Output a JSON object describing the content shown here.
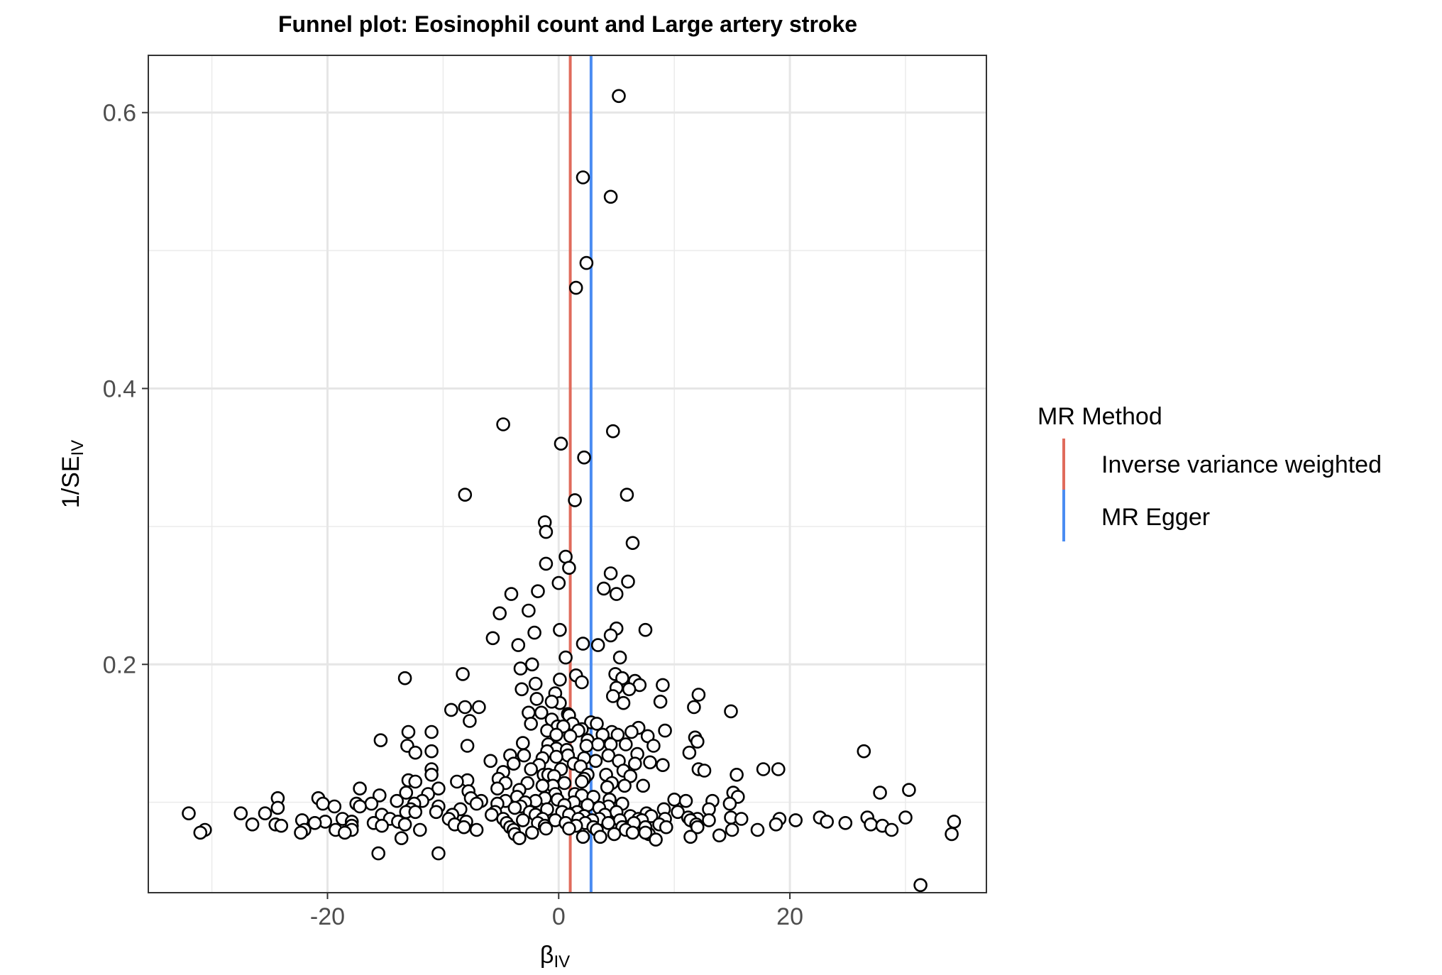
{
  "chart_data": {
    "type": "scatter",
    "title": "Funnel plot: Eosinophil count and Large artery stroke",
    "xlabel": {
      "main": "β",
      "sub": "IV"
    },
    "ylabel": {
      "main": "1/SE",
      "sub": "IV"
    },
    "xlim": [
      -35.5,
      37
    ],
    "ylim": [
      0.0345,
      0.6415
    ],
    "x_ticks": [
      -20,
      0,
      20
    ],
    "x_tick_labels": [
      "-20",
      "0",
      "20"
    ],
    "y_ticks": [
      0.2,
      0.4,
      0.6
    ],
    "y_tick_labels": [
      "0.2",
      "0.4",
      "0.6"
    ],
    "x_minor_ticks": [
      -30,
      -10,
      10,
      30
    ],
    "y_minor_ticks": [
      0.1,
      0.3,
      0.5
    ],
    "grid": true,
    "theme": "bw",
    "legend": {
      "title": "MR Method",
      "position": "right",
      "entries": [
        {
          "label": "Inverse variance weighted",
          "color": "#e06b5c"
        },
        {
          "label": "MR Egger",
          "color": "#4a8cf2"
        }
      ]
    },
    "lines": [
      {
        "name": "Inverse variance weighted",
        "orientation": "vertical",
        "x": 1.0,
        "color": "#e06b5c"
      },
      {
        "name": "MR Egger",
        "orientation": "vertical",
        "x": 2.8,
        "color": "#4a8cf2"
      }
    ],
    "points": [
      [
        5.2,
        0.612
      ],
      [
        2.1,
        0.553
      ],
      [
        4.5,
        0.539
      ],
      [
        2.4,
        0.491
      ],
      [
        1.5,
        0.473
      ],
      [
        -4.8,
        0.374
      ],
      [
        4.7,
        0.369
      ],
      [
        0.2,
        0.36
      ],
      [
        2.2,
        0.35
      ],
      [
        -8.1,
        0.323
      ],
      [
        1.4,
        0.319
      ],
      [
        5.9,
        0.323
      ],
      [
        -1.2,
        0.303
      ],
      [
        -1.1,
        0.296
      ],
      [
        6.4,
        0.288
      ],
      [
        0.6,
        0.278
      ],
      [
        -1.1,
        0.273
      ],
      [
        0.9,
        0.27
      ],
      [
        4.5,
        0.266
      ],
      [
        0.0,
        0.259
      ],
      [
        6.0,
        0.26
      ],
      [
        3.9,
        0.255
      ],
      [
        -4.1,
        0.251
      ],
      [
        -1.8,
        0.253
      ],
      [
        5.0,
        0.251
      ],
      [
        -5.1,
        0.237
      ],
      [
        -2.6,
        0.239
      ],
      [
        7.5,
        0.225
      ],
      [
        0.1,
        0.225
      ],
      [
        5.0,
        0.226
      ],
      [
        -2.1,
        0.223
      ],
      [
        4.5,
        0.221
      ],
      [
        -5.7,
        0.219
      ],
      [
        3.4,
        0.214
      ],
      [
        2.1,
        0.215
      ],
      [
        -3.5,
        0.214
      ],
      [
        0.6,
        0.205
      ],
      [
        5.3,
        0.205
      ],
      [
        -2.3,
        0.2
      ],
      [
        -3.3,
        0.197
      ],
      [
        4.9,
        0.193
      ],
      [
        -8.3,
        0.193
      ],
      [
        -13.3,
        0.19
      ],
      [
        5.5,
        0.19
      ],
      [
        1.5,
        0.192
      ],
      [
        0.1,
        0.189
      ],
      [
        2.0,
        0.187
      ],
      [
        6.6,
        0.188
      ],
      [
        -2.0,
        0.186
      ],
      [
        7.0,
        0.185
      ],
      [
        9.0,
        0.185
      ],
      [
        5.0,
        0.183
      ],
      [
        -3.2,
        0.182
      ],
      [
        6.1,
        0.182
      ],
      [
        -0.3,
        0.179
      ],
      [
        4.7,
        0.177
      ],
      [
        12.1,
        0.178
      ],
      [
        -1.9,
        0.175
      ],
      [
        5.6,
        0.172
      ],
      [
        0.1,
        0.172
      ],
      [
        -8.1,
        0.169
      ],
      [
        -6.9,
        0.169
      ],
      [
        8.8,
        0.173
      ],
      [
        -0.6,
        0.173
      ],
      [
        11.7,
        0.169
      ],
      [
        -9.3,
        0.167
      ],
      [
        14.9,
        0.166
      ],
      [
        -2.6,
        0.165
      ],
      [
        -1.5,
        0.165
      ],
      [
        0.8,
        0.164
      ],
      [
        0.9,
        0.163
      ],
      [
        -0.6,
        0.16
      ],
      [
        2.8,
        0.158
      ],
      [
        3.3,
        0.157
      ],
      [
        -7.7,
        0.159
      ],
      [
        -2.4,
        0.157
      ],
      [
        1.2,
        0.157
      ],
      [
        -0.1,
        0.155
      ],
      [
        0.4,
        0.155
      ],
      [
        -1.0,
        0.152
      ],
      [
        2.0,
        0.153
      ],
      [
        6.9,
        0.154
      ],
      [
        -11.0,
        0.151
      ],
      [
        -13.0,
        0.151
      ],
      [
        4.6,
        0.151
      ],
      [
        1.7,
        0.152
      ],
      [
        9.2,
        0.152
      ],
      [
        -0.2,
        0.149
      ],
      [
        3.8,
        0.149
      ],
      [
        1.0,
        0.148
      ],
      [
        5.1,
        0.149
      ],
      [
        6.3,
        0.151
      ],
      [
        7.7,
        0.148
      ],
      [
        11.8,
        0.147
      ],
      [
        -15.4,
        0.145
      ],
      [
        2.5,
        0.145
      ],
      [
        12.0,
        0.144
      ],
      [
        -3.1,
        0.143
      ],
      [
        3.4,
        0.142
      ],
      [
        -0.9,
        0.142
      ],
      [
        4.5,
        0.142
      ],
      [
        -7.9,
        0.141
      ],
      [
        8.2,
        0.141
      ],
      [
        -13.1,
        0.141
      ],
      [
        2.4,
        0.141
      ],
      [
        5.8,
        0.142
      ],
      [
        -0.2,
        0.139
      ],
      [
        0.7,
        0.138
      ],
      [
        -1.0,
        0.137
      ],
      [
        -11.0,
        0.137
      ],
      [
        -12.4,
        0.136
      ],
      [
        26.4,
        0.137
      ],
      [
        6.8,
        0.135
      ],
      [
        -4.2,
        0.134
      ],
      [
        -3.0,
        0.134
      ],
      [
        11.3,
        0.136
      ],
      [
        0.8,
        0.134
      ],
      [
        4.3,
        0.134
      ],
      [
        -1.4,
        0.132
      ],
      [
        3.2,
        0.13
      ],
      [
        -0.2,
        0.133
      ],
      [
        2.2,
        0.132
      ],
      [
        -5.9,
        0.13
      ],
      [
        5.2,
        0.13
      ],
      [
        7.9,
        0.129
      ],
      [
        -3.9,
        0.128
      ],
      [
        1.3,
        0.128
      ],
      [
        9.0,
        0.127
      ],
      [
        -1.7,
        0.127
      ],
      [
        1.9,
        0.126
      ],
      [
        6.6,
        0.128
      ],
      [
        17.7,
        0.124
      ],
      [
        19.0,
        0.124
      ],
      [
        0.2,
        0.124
      ],
      [
        -2.4,
        0.124
      ],
      [
        12.1,
        0.124
      ],
      [
        -11.0,
        0.124
      ],
      [
        12.6,
        0.123
      ],
      [
        -4.8,
        0.122
      ],
      [
        -11.0,
        0.12
      ],
      [
        2.5,
        0.12
      ],
      [
        5.6,
        0.123
      ],
      [
        -1.3,
        0.12
      ],
      [
        -0.9,
        0.12
      ],
      [
        4.1,
        0.12
      ],
      [
        -0.4,
        0.119
      ],
      [
        15.4,
        0.12
      ],
      [
        -7.9,
        0.116
      ],
      [
        2.2,
        0.117
      ],
      [
        6.2,
        0.119
      ],
      [
        -13.0,
        0.116
      ],
      [
        -12.4,
        0.115
      ],
      [
        -5.2,
        0.117
      ],
      [
        2.0,
        0.115
      ],
      [
        -8.8,
        0.115
      ],
      [
        0.5,
        0.114
      ],
      [
        -2.7,
        0.114
      ],
      [
        -4.6,
        0.114
      ],
      [
        4.6,
        0.114
      ],
      [
        5.7,
        0.112
      ],
      [
        -0.5,
        0.112
      ],
      [
        -1.4,
        0.112
      ],
      [
        7.3,
        0.112
      ],
      [
        -17.2,
        0.11
      ],
      [
        -10.4,
        0.11
      ],
      [
        -5.3,
        0.11
      ],
      [
        4.2,
        0.111
      ],
      [
        -3.4,
        0.109
      ],
      [
        30.3,
        0.109
      ],
      [
        27.8,
        0.107
      ],
      [
        -13.2,
        0.107
      ],
      [
        -7.8,
        0.108
      ],
      [
        15.1,
        0.107
      ],
      [
        -0.3,
        0.106
      ],
      [
        1.4,
        0.106
      ],
      [
        -15.5,
        0.105
      ],
      [
        -11.3,
        0.106
      ],
      [
        2.0,
        0.105
      ],
      [
        -24.3,
        0.103
      ],
      [
        -20.8,
        0.103
      ],
      [
        -7.6,
        0.103
      ],
      [
        -3.6,
        0.104
      ],
      [
        -1.2,
        0.103
      ],
      [
        3.0,
        0.104
      ],
      [
        15.5,
        0.104
      ],
      [
        -6.7,
        0.101
      ],
      [
        10.0,
        0.102
      ],
      [
        4.4,
        0.102
      ],
      [
        -0.1,
        0.102
      ],
      [
        11.0,
        0.101
      ],
      [
        -11.8,
        0.101
      ],
      [
        -4.6,
        0.101
      ],
      [
        -2.0,
        0.101
      ],
      [
        13.3,
        0.101
      ],
      [
        1.3,
        0.1
      ],
      [
        -14.0,
        0.101
      ],
      [
        -17.5,
        0.099
      ],
      [
        -12.5,
        0.099
      ],
      [
        -20.4,
        0.099
      ],
      [
        -16.2,
        0.099
      ],
      [
        -7.1,
        0.099
      ],
      [
        -5.3,
        0.099
      ],
      [
        -2.9,
        0.1
      ],
      [
        5.5,
        0.099
      ],
      [
        14.8,
        0.099
      ],
      [
        -19.4,
        0.097
      ],
      [
        -17.2,
        0.097
      ],
      [
        -10.4,
        0.097
      ],
      [
        -3.3,
        0.097
      ],
      [
        0.5,
        0.098
      ],
      [
        2.5,
        0.098
      ],
      [
        4.3,
        0.097
      ],
      [
        -24.3,
        0.096
      ],
      [
        -12.8,
        0.095
      ],
      [
        -8.5,
        0.095
      ],
      [
        -3.8,
        0.096
      ],
      [
        -1.0,
        0.095
      ],
      [
        3.5,
        0.096
      ],
      [
        9.1,
        0.095
      ],
      [
        13.0,
        0.095
      ],
      [
        -13.2,
        0.093
      ],
      [
        -10.6,
        0.093
      ],
      [
        -12.4,
        0.093
      ],
      [
        -5.5,
        0.093
      ],
      [
        -2.5,
        0.093
      ],
      [
        0.3,
        0.093
      ],
      [
        1.6,
        0.093
      ],
      [
        5.0,
        0.093
      ],
      [
        7.6,
        0.092
      ],
      [
        10.3,
        0.093
      ],
      [
        -32.0,
        0.092
      ],
      [
        -27.5,
        0.092
      ],
      [
        -25.4,
        0.092
      ],
      [
        -15.3,
        0.091
      ],
      [
        -9.2,
        0.091
      ],
      [
        -5.8,
        0.091
      ],
      [
        -2.0,
        0.091
      ],
      [
        0.9,
        0.091
      ],
      [
        2.2,
        0.09
      ],
      [
        4.0,
        0.091
      ],
      [
        6.2,
        0.09
      ],
      [
        8.0,
        0.09
      ],
      [
        11.2,
        0.089
      ],
      [
        14.9,
        0.089
      ],
      [
        22.6,
        0.089
      ],
      [
        26.7,
        0.089
      ],
      [
        30.0,
        0.089
      ],
      [
        -18.7,
        0.088
      ],
      [
        -14.6,
        0.088
      ],
      [
        -9.5,
        0.088
      ],
      [
        -4.8,
        0.088
      ],
      [
        -1.4,
        0.088
      ],
      [
        1.7,
        0.088
      ],
      [
        3.5,
        0.088
      ],
      [
        6.9,
        0.088
      ],
      [
        9.2,
        0.088
      ],
      [
        12.0,
        0.088
      ],
      [
        15.8,
        0.088
      ],
      [
        19.1,
        0.088
      ],
      [
        20.5,
        0.087
      ],
      [
        -22.2,
        0.087
      ],
      [
        -20.2,
        0.086
      ],
      [
        -17.9,
        0.086
      ],
      [
        -13.9,
        0.086
      ],
      [
        -8.0,
        0.086
      ],
      [
        -3.1,
        0.087
      ],
      [
        -0.3,
        0.087
      ],
      [
        2.9,
        0.087
      ],
      [
        5.3,
        0.087
      ],
      [
        7.2,
        0.087
      ],
      [
        11.4,
        0.087
      ],
      [
        13.0,
        0.087
      ],
      [
        23.2,
        0.086
      ],
      [
        -26.5,
        0.084
      ],
      [
        -24.5,
        0.084
      ],
      [
        -21.1,
        0.085
      ],
      [
        -16.0,
        0.085
      ],
      [
        -13.3,
        0.084
      ],
      [
        -9.0,
        0.084
      ],
      [
        -4.5,
        0.085
      ],
      [
        -1.8,
        0.085
      ],
      [
        0.6,
        0.085
      ],
      [
        2.3,
        0.085
      ],
      [
        4.3,
        0.085
      ],
      [
        6.5,
        0.085
      ],
      [
        8.7,
        0.084
      ],
      [
        11.9,
        0.084
      ],
      [
        18.8,
        0.084
      ],
      [
        24.8,
        0.085
      ],
      [
        27.0,
        0.084
      ],
      [
        28.0,
        0.083
      ],
      [
        34.2,
        0.086
      ],
      [
        -24.0,
        0.083
      ],
      [
        -17.9,
        0.083
      ],
      [
        -15.3,
        0.083
      ],
      [
        -8.2,
        0.082
      ],
      [
        -4.2,
        0.082
      ],
      [
        -1.2,
        0.083
      ],
      [
        1.5,
        0.083
      ],
      [
        3.0,
        0.082
      ],
      [
        5.5,
        0.082
      ],
      [
        7.5,
        0.082
      ],
      [
        9.3,
        0.082
      ],
      [
        12.0,
        0.082
      ],
      [
        -30.6,
        0.08
      ],
      [
        -22.0,
        0.08
      ],
      [
        -19.3,
        0.08
      ],
      [
        -17.9,
        0.08
      ],
      [
        -12.0,
        0.08
      ],
      [
        -7.1,
        0.08
      ],
      [
        -3.9,
        0.08
      ],
      [
        -1.1,
        0.081
      ],
      [
        0.9,
        0.081
      ],
      [
        3.3,
        0.08
      ],
      [
        5.8,
        0.08
      ],
      [
        15.0,
        0.08
      ],
      [
        17.2,
        0.08
      ],
      [
        28.8,
        0.08
      ],
      [
        -31.0,
        0.078
      ],
      [
        -22.3,
        0.078
      ],
      [
        -18.5,
        0.078
      ],
      [
        -3.8,
        0.077
      ],
      [
        -2.3,
        0.078
      ],
      [
        4.8,
        0.077
      ],
      [
        6.4,
        0.078
      ],
      [
        7.8,
        0.077
      ],
      [
        13.9,
        0.076
      ],
      [
        34.0,
        0.077
      ],
      [
        -13.6,
        0.074
      ],
      [
        -3.4,
        0.074
      ],
      [
        2.1,
        0.075
      ],
      [
        3.6,
        0.075
      ],
      [
        8.4,
        0.073
      ],
      [
        11.4,
        0.075
      ],
      [
        7.5,
        0.078
      ],
      [
        -15.6,
        0.063
      ],
      [
        -10.4,
        0.063
      ],
      [
        31.3,
        0.04
      ]
    ]
  }
}
